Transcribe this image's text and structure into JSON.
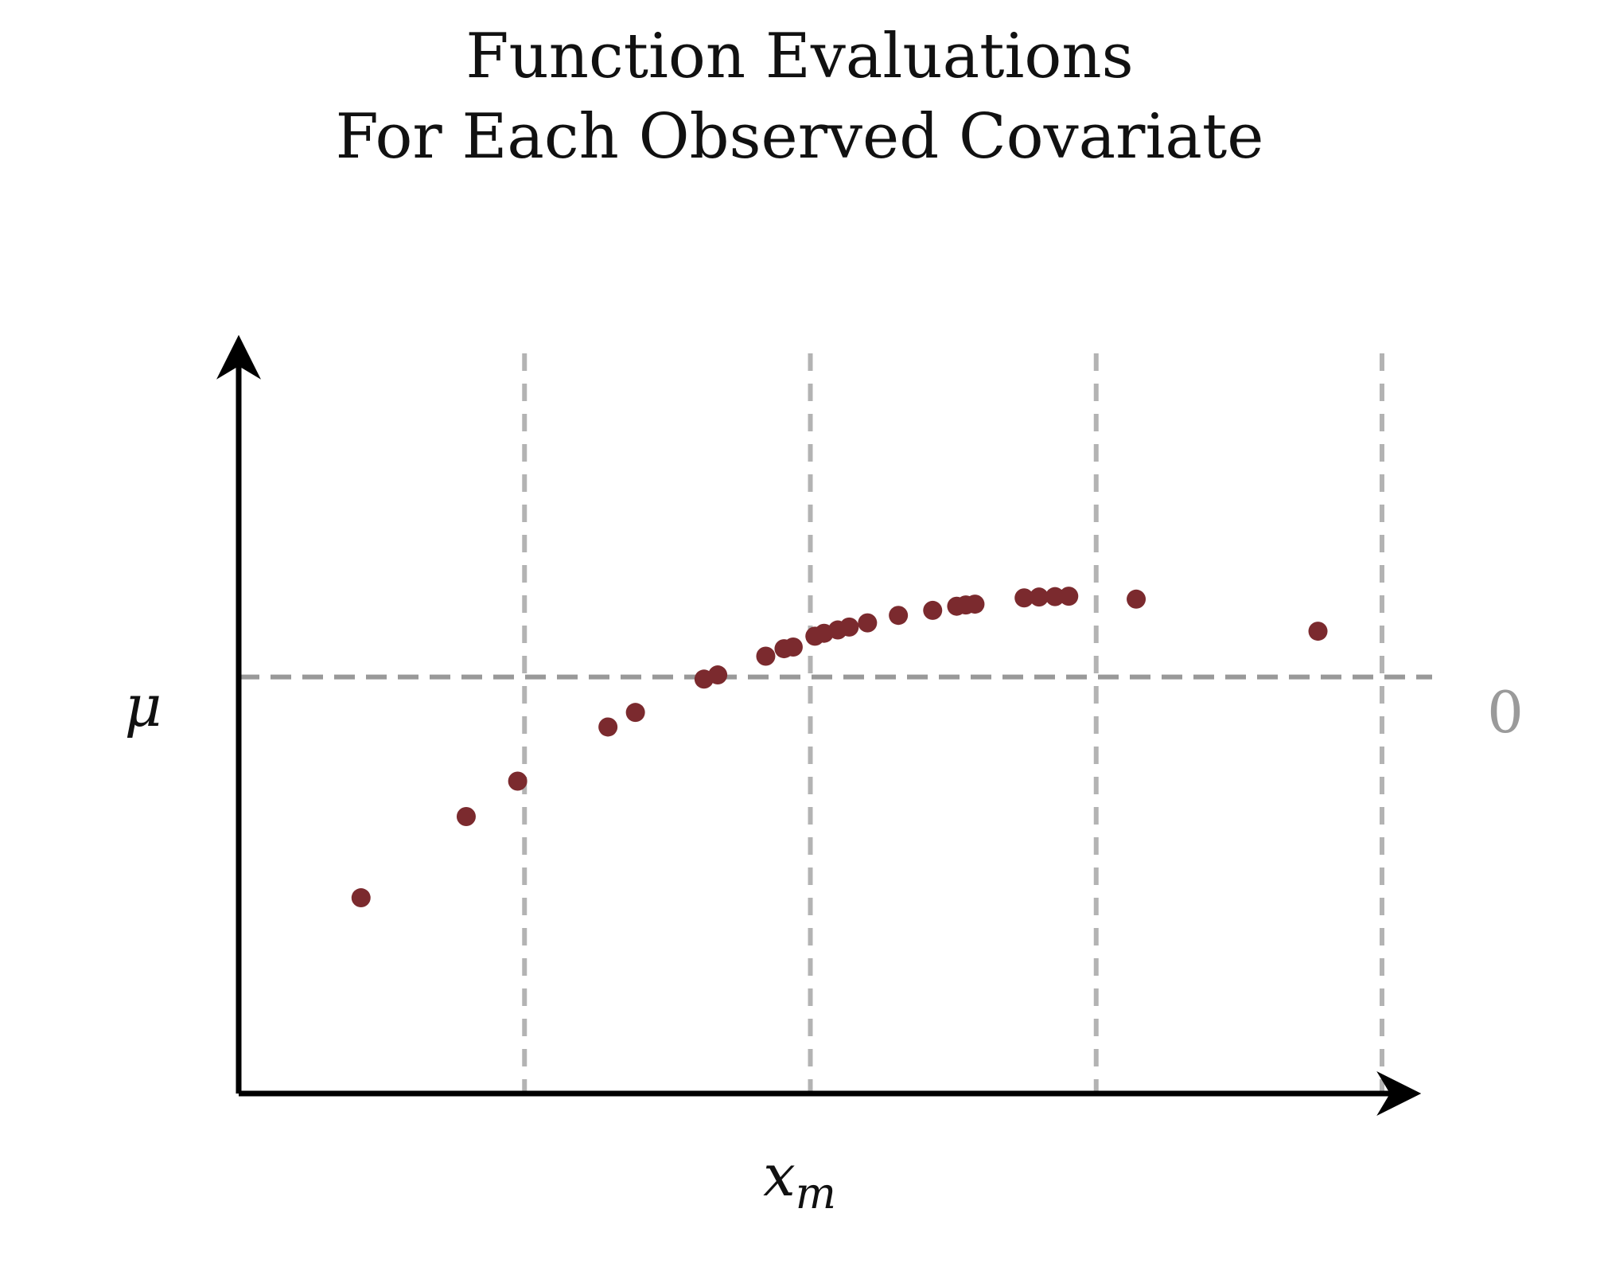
{
  "chart_data": {
    "type": "scatter",
    "title": [
      "Function Evaluations",
      "For Each Observed Covariate"
    ],
    "xlabel": {
      "base": "x",
      "sub": "m"
    },
    "ylabel": "μ",
    "zero_line_label": "0",
    "xlim": [
      0,
      10
    ],
    "ylim": [
      -1.0,
      0.8
    ],
    "vertical_gridlines_x": [
      2.5,
      5.0,
      7.5,
      10.0
    ],
    "grid": "dashed vertical gridlines and dashed zero line",
    "colors": {
      "points": "#7b2a2e",
      "axes": "#000000",
      "gridlines": "#b3b3b3",
      "zero_line": "#999999",
      "zero_label": "#9a9a9a"
    },
    "series": [
      {
        "x": [
          1.07,
          1.99,
          2.44,
          3.23,
          3.47,
          4.07,
          4.19,
          4.61,
          4.77,
          4.85,
          5.04,
          5.12,
          5.24,
          5.34,
          5.5,
          5.77,
          6.07,
          6.28,
          6.36,
          6.44,
          6.87,
          7.0,
          7.14,
          7.26,
          7.85,
          9.44
        ],
        "y": [
          -0.53,
          -0.335,
          -0.25,
          -0.12,
          -0.085,
          -0.005,
          0.005,
          0.05,
          0.068,
          0.072,
          0.098,
          0.105,
          0.113,
          0.12,
          0.13,
          0.148,
          0.16,
          0.17,
          0.173,
          0.175,
          0.19,
          0.192,
          0.193,
          0.194,
          0.187,
          0.11
        ]
      }
    ]
  }
}
